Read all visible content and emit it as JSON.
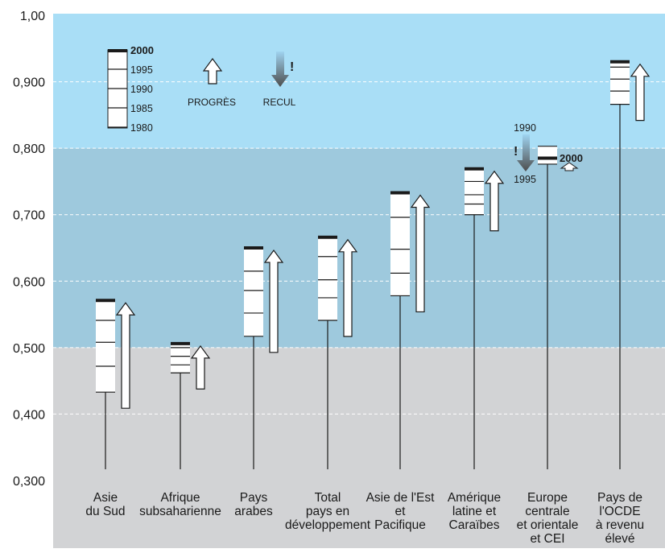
{
  "chart_data": {
    "type": "bar",
    "yticks": [
      "0,300",
      "0,400",
      "0,500",
      "0,600",
      "0,700",
      "0,800",
      "0,900",
      "1,00"
    ],
    "ylim": [
      0.3,
      1.0
    ],
    "grid": true,
    "bands": [
      {
        "from": 0.3,
        "to": 0.5,
        "color": "#d2d3d5"
      },
      {
        "from": 0.5,
        "to": 0.8,
        "color": "#9ec9dd"
      },
      {
        "from": 0.8,
        "to": 1.0,
        "color": "#a9def6"
      }
    ],
    "categories": [
      {
        "label": [
          "Asie",
          "du Sud"
        ],
        "values": [
          0.433,
          0.472,
          0.508,
          0.541,
          0.571
        ],
        "trend": "up"
      },
      {
        "label": [
          "Afrique",
          "subsaharienne"
        ],
        "values": [
          0.462,
          0.474,
          0.487,
          0.5,
          0.506
        ],
        "trend": "up"
      },
      {
        "label": [
          "Pays",
          "arabes"
        ],
        "values": [
          0.517,
          0.552,
          0.586,
          0.615,
          0.65
        ],
        "trend": "up"
      },
      {
        "label": [
          "Total",
          "pays en",
          "développement"
        ],
        "values": [
          0.541,
          0.575,
          0.602,
          0.637,
          0.666
        ],
        "trend": "up"
      },
      {
        "label": [
          "Asie de l'Est",
          "et",
          "Pacifique"
        ],
        "values": [
          0.578,
          0.612,
          0.648,
          0.696,
          0.733
        ],
        "trend": "up"
      },
      {
        "label": [
          "Amérique",
          "latine et",
          "Caraïbes"
        ],
        "values": [
          0.7,
          0.716,
          0.73,
          0.75,
          0.769
        ],
        "trend": "up"
      },
      {
        "label": [
          "Europe",
          "centrale",
          "et orientale",
          "et CEI"
        ],
        "values": [
          null,
          null,
          0.803,
          0.776,
          0.785
        ],
        "trend": "down-then-up"
      },
      {
        "label": [
          "Pays de",
          "l'OCDE",
          "à revenu",
          "élevé"
        ],
        "values": [
          0.866,
          0.886,
          0.904,
          0.922,
          0.93
        ],
        "trend": "up"
      }
    ],
    "legend": {
      "years": [
        "2000",
        "1995",
        "1990",
        "1985",
        "1980"
      ],
      "progress": "PROGRÈS",
      "decline": "RECUL",
      "decline_mark": "!"
    },
    "annotations": {
      "europe_start_year": "1990",
      "europe_low_year": "1995",
      "europe_end_year": "2000",
      "europe_mark": "!"
    },
    "colors": {
      "progress_arrow": "#ffffff",
      "decline_arrow_top": "#9fd3f0",
      "decline_arrow_bottom": "#4d4d4d",
      "latest_year_mark": "#1a1a1a"
    }
  }
}
